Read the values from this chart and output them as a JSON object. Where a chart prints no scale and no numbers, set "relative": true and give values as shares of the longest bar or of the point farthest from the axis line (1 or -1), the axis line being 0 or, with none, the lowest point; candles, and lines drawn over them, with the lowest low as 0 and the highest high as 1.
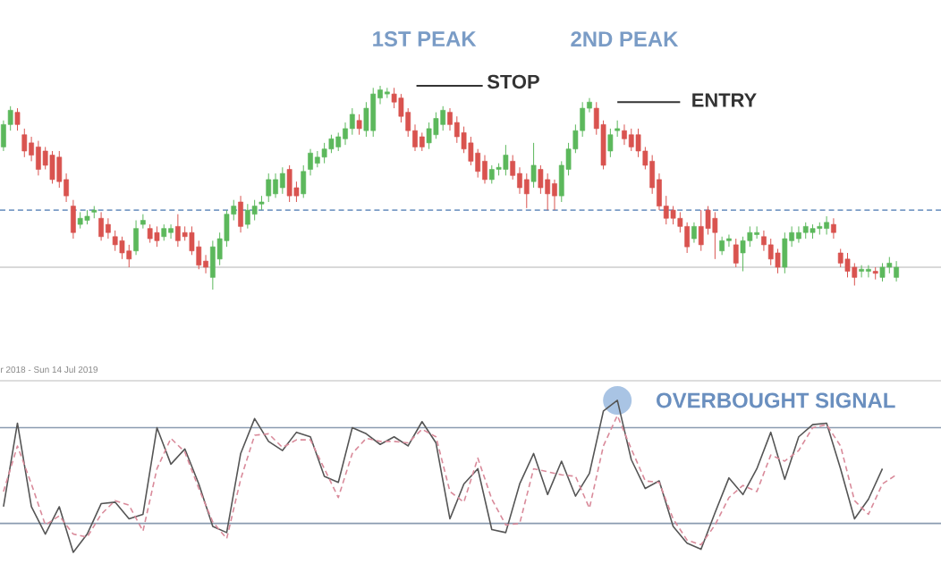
{
  "chart_data": [
    {
      "type": "candlestick",
      "relative": true,
      "categories": [
        null,
        null,
        null,
        null,
        null,
        null,
        null,
        null,
        null,
        null,
        null,
        null,
        null,
        null,
        null,
        null,
        null,
        null,
        null,
        null,
        null,
        null,
        null,
        null,
        null,
        null,
        null,
        null,
        null,
        null,
        null,
        null,
        null,
        null,
        null,
        null,
        null,
        null,
        null,
        null,
        null,
        null,
        null,
        null,
        null,
        null,
        null,
        null,
        null,
        null,
        null,
        null,
        null,
        null,
        null,
        null,
        null,
        null,
        null,
        null,
        null,
        null,
        null,
        null,
        null,
        null,
        null,
        null,
        null,
        null,
        null,
        null,
        null,
        null,
        null,
        null,
        null,
        null,
        null,
        null,
        null,
        null,
        null,
        null,
        null,
        null,
        null,
        null,
        null,
        null,
        null,
        null,
        null,
        null,
        null,
        null,
        null,
        null,
        null,
        null,
        null,
        null,
        null,
        null,
        null,
        null,
        null,
        null,
        null,
        null,
        null,
        null,
        null,
        null,
        null,
        null,
        null,
        null,
        null,
        null,
        null,
        null,
        null,
        null,
        null,
        null,
        null,
        null,
        null
      ],
      "ohlc": [
        [
          0.7,
          0.83,
          0.68,
          0.81
        ],
        [
          0.81,
          0.9,
          0.78,
          0.88
        ],
        [
          0.87,
          0.89,
          0.78,
          0.81
        ],
        [
          0.76,
          0.79,
          0.65,
          0.68
        ],
        [
          0.72,
          0.75,
          0.63,
          0.66
        ],
        [
          0.7,
          0.73,
          0.56,
          0.59
        ],
        [
          0.68,
          0.7,
          0.59,
          0.61
        ],
        [
          0.66,
          0.68,
          0.52,
          0.54
        ],
        [
          0.65,
          0.68,
          0.5,
          0.53
        ],
        [
          0.54,
          0.57,
          0.43,
          0.46
        ],
        [
          0.41,
          0.44,
          0.25,
          0.28
        ],
        [
          0.32,
          0.38,
          0.3,
          0.35
        ],
        [
          0.34,
          0.39,
          0.32,
          0.36
        ],
        [
          0.38,
          0.41,
          0.35,
          0.39
        ],
        [
          0.35,
          0.38,
          0.24,
          0.26
        ],
        [
          0.32,
          0.35,
          0.25,
          0.28
        ],
        [
          0.26,
          0.29,
          0.19,
          0.22
        ],
        [
          0.24,
          0.26,
          0.15,
          0.18
        ],
        [
          0.19,
          0.22,
          0.11,
          0.15
        ],
        [
          0.19,
          0.34,
          0.17,
          0.3
        ],
        [
          0.32,
          0.37,
          0.3,
          0.34
        ],
        [
          0.3,
          0.32,
          0.23,
          0.25
        ],
        [
          0.28,
          0.31,
          0.21,
          0.24
        ],
        [
          0.26,
          0.32,
          0.24,
          0.3
        ],
        [
          0.28,
          0.32,
          0.25,
          0.3
        ],
        [
          0.31,
          0.37,
          0.21,
          0.24
        ],
        [
          0.28,
          0.31,
          0.24,
          0.26
        ],
        [
          0.28,
          0.31,
          0.17,
          0.19
        ],
        [
          0.21,
          0.24,
          0.1,
          0.12
        ],
        [
          0.14,
          0.17,
          0.08,
          0.11
        ],
        [
          0.06,
          0.24,
          0.0,
          0.21
        ],
        [
          0.15,
          0.28,
          0.12,
          0.25
        ],
        [
          0.24,
          0.39,
          0.21,
          0.37
        ],
        [
          0.37,
          0.44,
          0.34,
          0.41
        ],
        [
          0.43,
          0.46,
          0.28,
          0.31
        ],
        [
          0.32,
          0.42,
          0.3,
          0.39
        ],
        [
          0.37,
          0.44,
          0.34,
          0.41
        ],
        [
          0.42,
          0.46,
          0.39,
          0.43
        ],
        [
          0.46,
          0.57,
          0.43,
          0.54
        ],
        [
          0.47,
          0.57,
          0.45,
          0.54
        ],
        [
          0.5,
          0.6,
          0.47,
          0.57
        ],
        [
          0.59,
          0.61,
          0.43,
          0.46
        ],
        [
          0.5,
          0.53,
          0.43,
          0.46
        ],
        [
          0.47,
          0.61,
          0.45,
          0.58
        ],
        [
          0.59,
          0.69,
          0.56,
          0.67
        ],
        [
          0.62,
          0.68,
          0.6,
          0.65
        ],
        [
          0.65,
          0.72,
          0.62,
          0.69
        ],
        [
          0.69,
          0.76,
          0.67,
          0.74
        ],
        [
          0.7,
          0.77,
          0.68,
          0.75
        ],
        [
          0.74,
          0.82,
          0.71,
          0.79
        ],
        [
          0.79,
          0.89,
          0.76,
          0.86
        ],
        [
          0.83,
          0.86,
          0.76,
          0.79
        ],
        [
          0.78,
          0.92,
          0.75,
          0.89
        ],
        [
          0.78,
          0.99,
          0.75,
          0.96
        ],
        [
          0.94,
          1.0,
          0.91,
          0.98
        ],
        [
          0.96,
          0.99,
          0.94,
          0.97
        ],
        [
          0.96,
          0.99,
          0.89,
          0.92
        ],
        [
          0.94,
          0.96,
          0.82,
          0.85
        ],
        [
          0.87,
          0.89,
          0.75,
          0.78
        ],
        [
          0.78,
          0.81,
          0.68,
          0.7
        ],
        [
          0.75,
          0.77,
          0.68,
          0.7
        ],
        [
          0.72,
          0.82,
          0.69,
          0.79
        ],
        [
          0.76,
          0.87,
          0.74,
          0.84
        ],
        [
          0.81,
          0.9,
          0.78,
          0.88
        ],
        [
          0.87,
          0.89,
          0.78,
          0.81
        ],
        [
          0.82,
          0.85,
          0.72,
          0.75
        ],
        [
          0.77,
          0.8,
          0.67,
          0.69
        ],
        [
          0.72,
          0.75,
          0.61,
          0.63
        ],
        [
          0.67,
          0.69,
          0.55,
          0.58
        ],
        [
          0.63,
          0.66,
          0.52,
          0.54
        ],
        [
          0.54,
          0.61,
          0.52,
          0.59
        ],
        [
          0.59,
          0.62,
          0.56,
          0.6
        ],
        [
          0.59,
          0.71,
          0.56,
          0.66
        ],
        [
          0.63,
          0.66,
          0.54,
          0.56
        ],
        [
          0.57,
          0.6,
          0.47,
          0.5
        ],
        [
          0.54,
          0.57,
          0.4,
          0.47
        ],
        [
          0.53,
          0.72,
          0.5,
          0.61
        ],
        [
          0.59,
          0.61,
          0.47,
          0.5
        ],
        [
          0.54,
          0.57,
          0.39,
          0.47
        ],
        [
          0.52,
          0.54,
          0.39,
          0.46
        ],
        [
          0.46,
          0.63,
          0.43,
          0.61
        ],
        [
          0.59,
          0.72,
          0.56,
          0.69
        ],
        [
          0.69,
          0.81,
          0.67,
          0.78
        ],
        [
          0.78,
          0.92,
          0.75,
          0.89
        ],
        [
          0.89,
          0.94,
          0.87,
          0.92
        ],
        [
          0.89,
          0.92,
          0.76,
          0.79
        ],
        [
          0.81,
          0.83,
          0.59,
          0.61
        ],
        [
          0.68,
          0.79,
          0.65,
          0.76
        ],
        [
          0.78,
          0.83,
          0.75,
          0.79
        ],
        [
          0.78,
          0.81,
          0.71,
          0.74
        ],
        [
          0.76,
          0.79,
          0.68,
          0.7
        ],
        [
          0.76,
          0.79,
          0.65,
          0.68
        ],
        [
          0.68,
          0.7,
          0.59,
          0.61
        ],
        [
          0.63,
          0.66,
          0.47,
          0.5
        ],
        [
          0.54,
          0.57,
          0.39,
          0.41
        ],
        [
          0.41,
          0.46,
          0.32,
          0.35
        ],
        [
          0.39,
          0.41,
          0.32,
          0.35
        ],
        [
          0.35,
          0.38,
          0.28,
          0.31
        ],
        [
          0.31,
          0.33,
          0.18,
          0.21
        ],
        [
          0.25,
          0.33,
          0.23,
          0.31
        ],
        [
          0.31,
          0.39,
          0.19,
          0.22
        ],
        [
          0.39,
          0.41,
          0.27,
          0.3
        ],
        [
          0.35,
          0.38,
          0.15,
          0.28
        ],
        [
          0.19,
          0.26,
          0.17,
          0.24
        ],
        [
          0.24,
          0.27,
          0.21,
          0.25
        ],
        [
          0.22,
          0.25,
          0.11,
          0.13
        ],
        [
          0.18,
          0.26,
          0.09,
          0.24
        ],
        [
          0.24,
          0.31,
          0.21,
          0.28
        ],
        [
          0.27,
          0.31,
          0.25,
          0.28
        ],
        [
          0.26,
          0.29,
          0.19,
          0.22
        ],
        [
          0.22,
          0.25,
          0.12,
          0.15
        ],
        [
          0.18,
          0.2,
          0.08,
          0.11
        ],
        [
          0.11,
          0.28,
          0.08,
          0.25
        ],
        [
          0.24,
          0.31,
          0.21,
          0.28
        ],
        [
          0.25,
          0.31,
          0.23,
          0.28
        ],
        [
          0.28,
          0.33,
          0.25,
          0.31
        ],
        [
          0.28,
          0.32,
          0.25,
          0.3
        ],
        [
          0.3,
          0.33,
          0.27,
          0.31
        ],
        [
          0.3,
          0.36,
          0.27,
          0.33
        ],
        [
          0.32,
          0.35,
          0.25,
          0.28
        ],
        [
          0.18,
          0.2,
          0.11,
          0.13
        ],
        [
          0.15,
          0.18,
          0.06,
          0.09
        ],
        [
          0.11,
          0.13,
          0.02,
          0.06
        ],
        [
          0.09,
          0.12,
          0.06,
          0.1
        ],
        [
          0.09,
          0.12,
          0.06,
          0.1
        ],
        [
          0.09,
          0.11,
          0.05,
          0.08
        ],
        [
          0.06,
          0.13,
          0.04,
          0.11
        ],
        [
          0.11,
          0.16,
          0.08,
          0.13
        ],
        [
          0.06,
          0.14,
          0.04,
          0.11
        ]
      ],
      "annotations": [
        "1ST PEAK",
        "2ND PEAK",
        "STOP",
        "ENTRY"
      ],
      "ref_lines": [
        {
          "axis": "y",
          "value": 0.39,
          "line_style": "dashed",
          "color": "#7a9cc6"
        },
        {
          "axis": "y",
          "value": 0.11,
          "color": "#cccccc"
        }
      ]
    },
    {
      "type": "line",
      "relative": true,
      "categories": [
        null,
        null,
        null,
        null,
        null,
        null,
        null,
        null,
        null,
        null,
        null,
        null,
        null,
        null,
        null,
        null,
        null,
        null,
        null,
        null,
        null,
        null,
        null,
        null,
        null,
        null,
        null,
        null,
        null,
        null,
        null,
        null,
        null,
        null,
        null,
        null,
        null,
        null,
        null,
        null,
        null,
        null,
        null,
        null,
        null,
        null,
        null,
        null,
        null,
        null,
        null,
        null,
        null,
        null,
        null,
        null,
        null,
        null,
        null,
        null,
        null,
        null,
        null,
        null,
        null
      ],
      "series": [
        {
          "color": "#555555",
          "values": [
            0.3,
            0.85,
            0.3,
            0.12,
            0.3,
            0,
            0.12,
            0.32,
            0.33,
            0.22,
            0.25,
            0.82,
            0.58,
            0.68,
            0.45,
            0.17,
            0.13,
            0.65,
            0.88,
            0.73,
            0.67,
            0.79,
            0.76,
            0.5,
            0.46,
            0.82,
            0.78,
            0.71,
            0.76,
            0.7,
            0.86,
            0.72,
            0.22,
            0.45,
            0.55,
            0.15,
            0.13,
            0.45,
            0.65,
            0.38,
            0.6,
            0.37,
            0.52,
            0.93,
            1,
            0.61,
            0.42,
            0.47,
            0.17,
            0.06,
            0.02,
            0.26,
            0.49,
            0.38,
            0.55,
            0.79,
            0.48,
            0.76,
            0.84,
            0.85,
            0.55,
            0.22,
            0.35,
            0.55,
            null
          ]
        },
        {
          "color": "#d98a9a",
          "line_style": "dashed",
          "values": [
            0.4,
            0.7,
            0.45,
            0.18,
            0.24,
            0.12,
            0.1,
            0.25,
            0.34,
            0.31,
            0.14,
            0.55,
            0.75,
            0.66,
            0.42,
            0.2,
            0.09,
            0.48,
            0.77,
            0.78,
            0.69,
            0.74,
            0.74,
            0.55,
            0.36,
            0.65,
            0.75,
            0.73,
            0.73,
            0.72,
            0.81,
            0.76,
            0.4,
            0.33,
            0.62,
            0.35,
            0.18,
            0.19,
            0.55,
            0.53,
            0.51,
            0.5,
            0.29,
            0.7,
            0.9,
            0.68,
            0.47,
            0.46,
            0.22,
            0.08,
            0.05,
            0.18,
            0.36,
            0.44,
            0.4,
            0.64,
            0.6,
            0.67,
            0.82,
            0.84,
            0.7,
            0.34,
            0.25,
            0.45,
            0.51
          ]
        }
      ],
      "ref_lines": [
        {
          "axis": "y",
          "value": 0.82,
          "color": "#8a9bb0"
        },
        {
          "axis": "y",
          "value": 0.19,
          "color": "#8a9bb0"
        }
      ],
      "annotations": [
        "r 2018 - Sun 14 Jul 2019",
        "OVERBOUGHT SIGNAL"
      ]
    }
  ]
}
